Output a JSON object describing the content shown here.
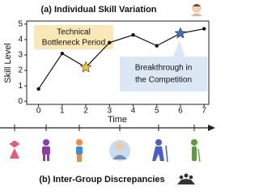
{
  "chart_data": {
    "type": "line",
    "title": "(a) Individual Skill Variation",
    "xlabel": "Time",
    "ylabel": "Skill Level",
    "x": [
      0,
      1,
      2,
      3,
      4,
      5,
      6,
      7
    ],
    "series": [
      {
        "color": "#111111",
        "values": [
          0.8,
          3.1,
          2.2,
          3.8,
          4.3,
          3.6,
          4.4,
          4.7
        ]
      }
    ],
    "star_points": [
      {
        "index": 2,
        "color": "#f4c430"
      },
      {
        "index": 6,
        "color": "#3d6fc9"
      }
    ],
    "xlim": [
      -0.5,
      7.2
    ],
    "ylim": [
      -0.2,
      5.2
    ],
    "xticks": [
      0,
      1,
      2,
      3,
      4,
      5,
      6,
      7
    ],
    "yticks": [
      0,
      1,
      2,
      3,
      4,
      5
    ],
    "annotations": [
      {
        "lines": [
          "Technical",
          "Bottleneck Period"
        ],
        "color": "#fbe8b8"
      },
      {
        "lines": [
          "Breakthrough in",
          "the Competition"
        ],
        "color": "#dbe7f5"
      }
    ]
  },
  "panel_b": {
    "title": "(b) Inter-Group Discrepancies"
  }
}
